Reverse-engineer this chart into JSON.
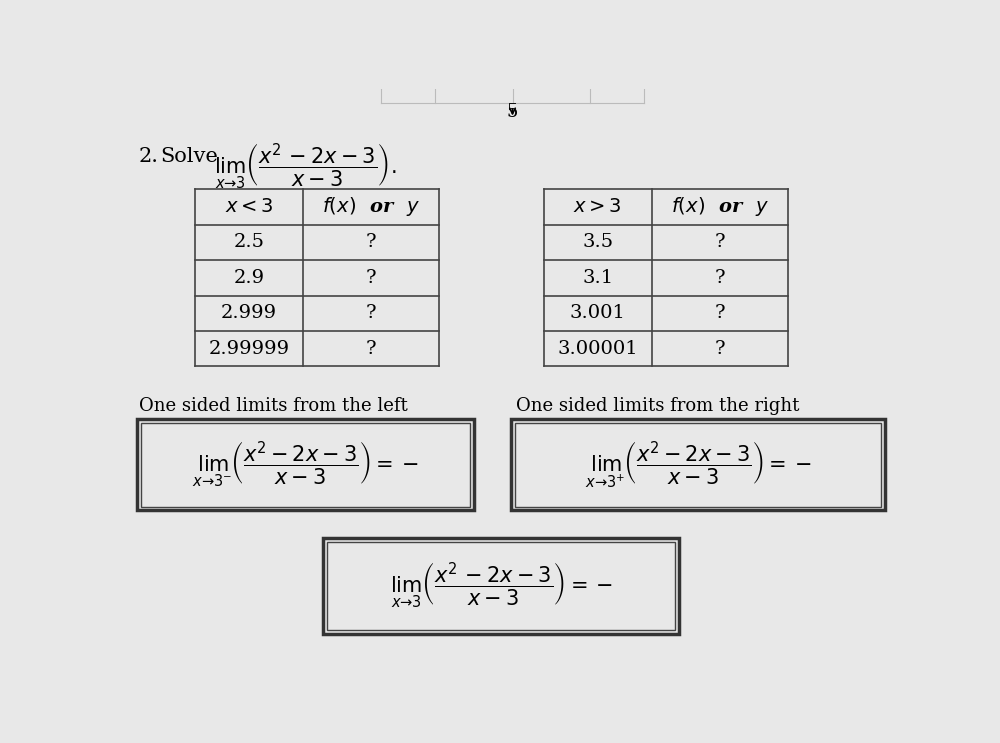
{
  "bg_color": "#e8e8e8",
  "page_number": "5",
  "title_number": "2.",
  "title_solve": "Solve",
  "left_table_header": [
    "$x < 3$",
    "$f(x)$  or  $y$"
  ],
  "left_table_rows": [
    [
      "2.5",
      "?"
    ],
    [
      "2.9",
      "?"
    ],
    [
      "2.999",
      "?"
    ],
    [
      "2.99999",
      "?"
    ]
  ],
  "right_table_header": [
    "$x > 3$",
    "$f(x)$  or  $y$"
  ],
  "right_table_rows": [
    [
      "3.5",
      "?"
    ],
    [
      "3.1",
      "?"
    ],
    [
      "3.001",
      "?"
    ],
    [
      "3.00001",
      "?"
    ]
  ],
  "left_label": "One sided limits from the left",
  "right_label": "One sided limits from the right",
  "font_size_title": 15,
  "font_size_table_hdr": 14,
  "font_size_table_data": 14,
  "font_size_label": 13,
  "font_size_box": 14,
  "line_color": "#444444",
  "box_bg": "#e8e8e8"
}
